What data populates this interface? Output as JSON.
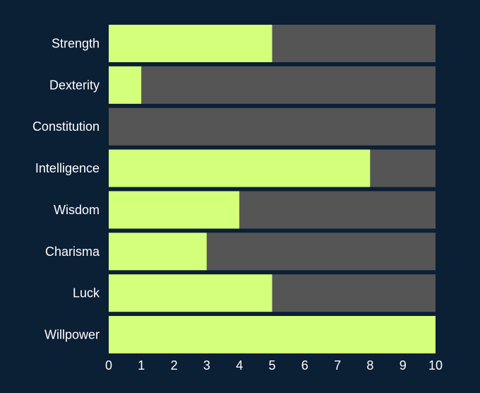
{
  "chart_data": {
    "type": "bar",
    "orientation": "horizontal",
    "stacked": true,
    "categories": [
      "Strength",
      "Dexterity",
      "Constitution",
      "Intelligence",
      "Wisdom",
      "Charisma",
      "Luck",
      "Willpower"
    ],
    "series": [
      {
        "values": [
          5,
          1,
          0,
          8,
          4,
          3,
          5,
          10
        ],
        "color": "#d4ff7a"
      },
      {
        "values": [
          5,
          9,
          10,
          2,
          6,
          7,
          5,
          0
        ],
        "color": "#555555"
      }
    ],
    "xlim": [
      0,
      10
    ],
    "xticks": [
      "0",
      "1",
      "2",
      "3",
      "4",
      "5",
      "6",
      "7",
      "8",
      "9",
      "10"
    ],
    "title": "",
    "xlabel": "",
    "ylabel": "",
    "grid": false,
    "legend": "none",
    "background": "#0b1f35"
  }
}
